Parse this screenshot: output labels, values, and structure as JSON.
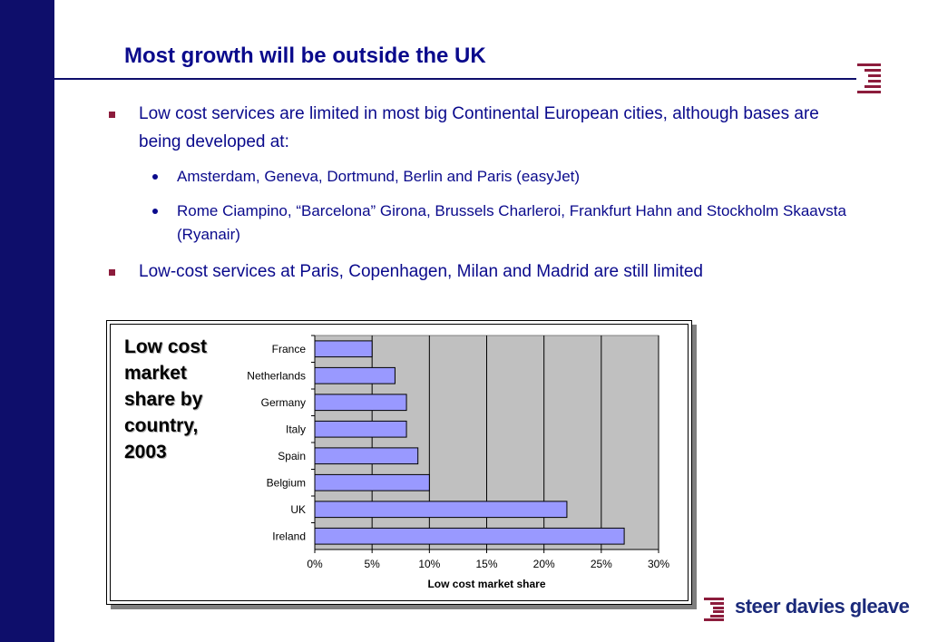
{
  "slide": {
    "title": "Most growth will be outside the UK",
    "bullets": [
      {
        "text": "Low cost services are limited in most big Continental European cities, although bases are being developed at:",
        "sub": [
          "Amsterdam, Geneva, Dortmund, Berlin and Paris (easyJet)",
          "Rome Ciampino, “Barcelona” Girona, Brussels Charleroi, Frankfurt Hahn and Stockholm Skaavsta (Ryanair)"
        ]
      },
      {
        "text": "Low-cost services at Paris, Copenhagen, Milan and Madrid are still limited"
      }
    ],
    "chart_caption": "Low cost market share by country, 2003",
    "brand": "steer davies gleave"
  },
  "colors": {
    "sidebar": "#0e0e6b",
    "title": "#0a0a8c",
    "bullet_square": "#8c1c3c",
    "bar_fill": "#9999ff",
    "plot_bg": "#c0c0c0"
  },
  "chart_data": {
    "type": "bar",
    "orientation": "horizontal",
    "categories": [
      "France",
      "Netherlands",
      "Germany",
      "Italy",
      "Spain",
      "Belgium",
      "UK",
      "Ireland"
    ],
    "values": [
      5,
      7,
      8,
      8,
      9,
      10,
      22,
      27
    ],
    "xlabel": "Low cost market share",
    "xlim": [
      0,
      30
    ],
    "xticks": [
      "0%",
      "5%",
      "10%",
      "15%",
      "20%",
      "25%",
      "30%"
    ],
    "grid": "vertical"
  }
}
